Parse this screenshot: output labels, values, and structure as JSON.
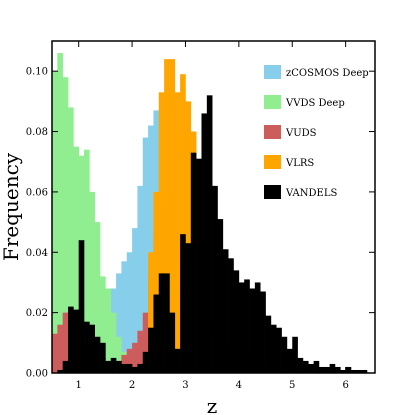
{
  "chart_data": {
    "type": "bar",
    "xlabel": "z",
    "ylabel": "Frequency",
    "xlim": [
      0.5,
      6.55
    ],
    "ylim": [
      0,
      0.11
    ],
    "grid": false,
    "legend_position": "top-right",
    "bin_width": 0.1,
    "x_ticks": [
      1,
      2,
      3,
      4,
      5,
      6
    ],
    "x_tick_labels": [
      "1",
      "2",
      "3",
      "4",
      "5",
      "6"
    ],
    "y_ticks": [
      0,
      0.02,
      0.04,
      0.06,
      0.08,
      0.1
    ],
    "y_tick_labels": [
      "0.00",
      "0.02",
      "0.04",
      "0.06",
      "0.08",
      "0.10"
    ],
    "series": [
      {
        "name": "zCOSMOS Deep",
        "color": "#87ceeb",
        "x": [
          0.5,
          0.6,
          0.7,
          0.8,
          0.9,
          1.0,
          1.1,
          1.2,
          1.3,
          1.4,
          1.5,
          1.6,
          1.7,
          1.8,
          1.9,
          2.0,
          2.1,
          2.2,
          2.3,
          2.4,
          2.5,
          2.6,
          2.7,
          2.8,
          2.9,
          3.0,
          3.1,
          3.2,
          3.3,
          3.4,
          3.5
        ],
        "values": [
          0.0,
          0.0,
          0.0,
          0.002,
          0.004,
          0.008,
          0.012,
          0.013,
          0.017,
          0.015,
          0.022,
          0.028,
          0.033,
          0.037,
          0.04,
          0.048,
          0.062,
          0.078,
          0.082,
          0.087,
          0.08,
          0.06,
          0.045,
          0.028,
          0.02,
          0.012,
          0.008,
          0.005,
          0.003,
          0.002,
          0.001
        ]
      },
      {
        "name": "VVDS Deep",
        "color": "#90ee90",
        "x": [
          0.5,
          0.6,
          0.7,
          0.8,
          0.9,
          1.0,
          1.1,
          1.2,
          1.3,
          1.4,
          1.5,
          1.6,
          1.7,
          1.8,
          1.9,
          2.0
        ],
        "values": [
          0.1,
          0.106,
          0.098,
          0.088,
          0.075,
          0.072,
          0.074,
          0.06,
          0.05,
          0.032,
          0.028,
          0.02,
          0.012,
          0.007,
          0.004,
          0.002
        ]
      },
      {
        "name": "VUDS",
        "color": "#cd5c5c",
        "x": [
          0.5,
          0.6,
          0.7,
          0.8,
          0.9,
          1.0,
          1.1,
          1.2,
          1.3,
          1.4,
          1.5,
          1.6,
          1.7,
          1.8,
          1.9,
          2.0,
          2.1,
          2.2,
          2.3,
          2.4,
          2.5,
          2.6,
          2.7,
          2.8,
          2.9,
          3.0,
          3.1,
          3.2,
          3.3,
          3.4,
          3.5,
          3.6,
          3.7,
          3.8,
          3.9,
          4.0,
          4.1,
          4.2,
          4.3,
          4.4,
          4.5,
          4.6,
          4.7,
          4.8,
          4.9,
          5.0
        ],
        "values": [
          0.013,
          0.016,
          0.02,
          0.018,
          0.013,
          0.008,
          0.006,
          0.006,
          0.008,
          0.005,
          0.004,
          0.003,
          0.004,
          0.006,
          0.008,
          0.01,
          0.014,
          0.02,
          0.032,
          0.045,
          0.052,
          0.054,
          0.045,
          0.036,
          0.036,
          0.034,
          0.03,
          0.024,
          0.023,
          0.018,
          0.013,
          0.011,
          0.009,
          0.008,
          0.007,
          0.006,
          0.005,
          0.004,
          0.004,
          0.003,
          0.003,
          0.002,
          0.002,
          0.002,
          0.001,
          0.001
        ]
      },
      {
        "name": "VLRS",
        "color": "#ffa500",
        "x": [
          2.3,
          2.4,
          2.5,
          2.6,
          2.7,
          2.8,
          2.9,
          3.0,
          3.1,
          3.2,
          3.3,
          3.4
        ],
        "values": [
          0.04,
          0.06,
          0.093,
          0.104,
          0.104,
          0.093,
          0.099,
          0.09,
          0.08,
          0.06,
          0.036,
          0.012
        ]
      },
      {
        "name": "VANDELS",
        "color": "#000000",
        "x": [
          0.5,
          0.6,
          0.7,
          0.8,
          0.9,
          1.0,
          1.1,
          1.2,
          1.3,
          1.4,
          1.5,
          1.6,
          1.7,
          1.8,
          1.9,
          2.0,
          2.1,
          2.2,
          2.3,
          2.4,
          2.5,
          2.6,
          2.7,
          2.8,
          2.9,
          3.0,
          3.1,
          3.2,
          3.3,
          3.4,
          3.5,
          3.6,
          3.7,
          3.8,
          3.9,
          4.0,
          4.1,
          4.2,
          4.3,
          4.4,
          4.5,
          4.6,
          4.7,
          4.8,
          4.9,
          5.0,
          5.1,
          5.2,
          5.3,
          5.4,
          5.5,
          5.6,
          5.7,
          5.8,
          5.9,
          6.0,
          6.1,
          6.2,
          6.3,
          6.4
        ],
        "values": [
          0.0,
          0.001,
          0.004,
          0.022,
          0.021,
          0.044,
          0.017,
          0.016,
          0.012,
          0.01,
          0.004,
          0.005,
          0.004,
          0.003,
          0.003,
          0.002,
          0.003,
          0.007,
          0.015,
          0.026,
          0.033,
          0.033,
          0.02,
          0.008,
          0.046,
          0.043,
          0.073,
          0.071,
          0.086,
          0.092,
          0.062,
          0.051,
          0.041,
          0.038,
          0.034,
          0.03,
          0.031,
          0.028,
          0.03,
          0.027,
          0.019,
          0.016,
          0.015,
          0.012,
          0.008,
          0.012,
          0.005,
          0.004,
          0.003,
          0.004,
          0.002,
          0.002,
          0.003,
          0.002,
          0.001,
          0.002,
          0.001,
          0.001,
          0.001,
          0.0
        ]
      }
    ]
  }
}
